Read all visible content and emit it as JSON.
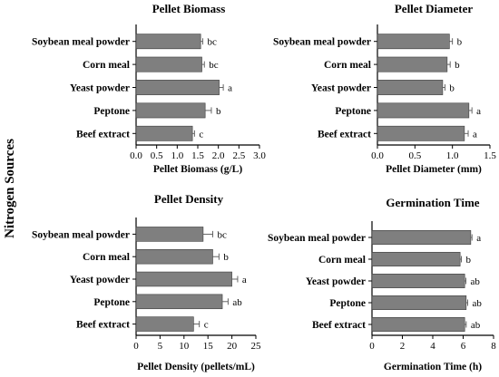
{
  "figure": {
    "ylabel": "Nitrogen Sources"
  },
  "chart_data": [
    {
      "type": "bar",
      "orientation": "horizontal",
      "title": "Pellet Biomass",
      "xlabel": "Pellet Biomass (g/L)",
      "ylabel": "",
      "categories": [
        "Soybean meal powder",
        "Corn meal",
        "Yeast powder",
        "Peptone",
        "Beef extract"
      ],
      "values": [
        1.57,
        1.6,
        2.02,
        1.68,
        1.37
      ],
      "errors": [
        0.05,
        0.06,
        0.1,
        0.15,
        0.05
      ],
      "significance": [
        "bc",
        "bc",
        "a",
        "b",
        "c"
      ],
      "xlim": [
        0,
        3.0
      ],
      "xticks": [
        "0.0",
        "0.5",
        "1.0",
        "1.5",
        "2.0",
        "2.5",
        "3.0"
      ],
      "grid": false,
      "bar_color": "#7f7f7f"
    },
    {
      "type": "bar",
      "orientation": "horizontal",
      "title": "Pellet Diameter",
      "xlabel": "Pellet Diameter (mm)",
      "ylabel": "",
      "categories": [
        "Soybean meal powder",
        "Corn meal",
        "Yeast powder",
        "Peptone",
        "Beef extract"
      ],
      "values": [
        0.96,
        0.93,
        0.87,
        1.22,
        1.16
      ],
      "errors": [
        0.04,
        0.04,
        0.03,
        0.04,
        0.05
      ],
      "significance": [
        "b",
        "b",
        "b",
        "a",
        "a"
      ],
      "xlim": [
        0,
        1.5
      ],
      "xticks": [
        "0.0",
        "0.5",
        "1.0",
        "1.5"
      ],
      "grid": false,
      "bar_color": "#7f7f7f"
    },
    {
      "type": "bar",
      "orientation": "horizontal",
      "title": "Pellet Density",
      "xlabel": "Pellet Density (pellets/mL)",
      "ylabel": "",
      "categories": [
        "Soybean meal powder",
        "Corn meal",
        "Yeast powder",
        "Peptone",
        "Beef extract"
      ],
      "values": [
        14,
        16,
        20,
        18,
        12
      ],
      "errors": [
        2.0,
        1.3,
        1.2,
        1.2,
        1.2
      ],
      "significance": [
        "bc",
        "b",
        "a",
        "ab",
        "c"
      ],
      "xlim": [
        0,
        25
      ],
      "xticks": [
        "0",
        "5",
        "10",
        "15",
        "20",
        "25"
      ],
      "grid": false,
      "bar_color": "#7f7f7f"
    },
    {
      "type": "bar",
      "orientation": "horizontal",
      "title": "Germination Time",
      "xlabel": "Germination Time (h)",
      "ylabel": "",
      "categories": [
        "Soybean meal powder",
        "Corn meal",
        "Yeast powder",
        "Peptone",
        "Beef extract"
      ],
      "values": [
        6.5,
        5.8,
        6.1,
        6.2,
        6.1
      ],
      "errors": [
        0.08,
        0.08,
        0.08,
        0.1,
        0.1
      ],
      "significance": [
        "a",
        "b",
        "ab",
        "ab",
        "ab"
      ],
      "xlim": [
        0,
        8
      ],
      "xticks": [
        "0",
        "2",
        "4",
        "6",
        "8"
      ],
      "grid": false,
      "bar_color": "#7f7f7f"
    }
  ]
}
